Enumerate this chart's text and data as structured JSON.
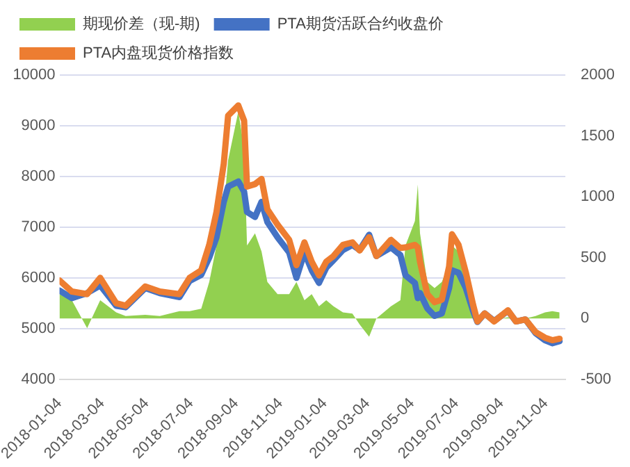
{
  "chart_data": {
    "type": "line",
    "legend": "top",
    "grid": "y",
    "marker": "none",
    "line_style": "solid",
    "x": [
      "2018-01-04",
      "2018-01-21",
      "2018-02-11",
      "2018-03-01",
      "2018-03-23",
      "2018-04-05",
      "2018-05-02",
      "2018-05-22",
      "2018-06-18",
      "2018-07-02",
      "2018-07-18",
      "2018-07-29",
      "2018-08-08",
      "2018-08-18",
      "2018-08-24",
      "2018-09-07",
      "2018-09-15",
      "2018-09-19",
      "2018-09-30",
      "2018-10-09",
      "2018-10-17",
      "2018-10-31",
      "2018-11-16",
      "2018-11-26",
      "2018-12-07",
      "2018-12-17",
      "2018-12-27",
      "2019-01-06",
      "2019-01-16",
      "2019-01-29",
      "2019-02-11",
      "2019-02-21",
      "2019-03-06",
      "2019-03-16",
      "2019-04-05",
      "2019-04-18",
      "2019-04-25",
      "2019-05-08",
      "2019-05-12",
      "2019-05-15",
      "2019-05-25",
      "2019-06-04",
      "2019-06-14",
      "2019-06-24",
      "2019-06-28",
      "2019-07-07",
      "2019-07-17",
      "2019-07-27",
      "2019-08-02",
      "2019-08-12",
      "2019-08-25",
      "2019-09-13",
      "2019-09-24",
      "2019-10-07",
      "2019-10-21",
      "2019-11-03",
      "2019-11-13",
      "2019-11-23"
    ],
    "series": [
      {
        "name": "期现价差（现-期)",
        "type": "area",
        "axis": "y2",
        "color": "#92d050",
        "values": [
          200,
          150,
          -80,
          150,
          50,
          20,
          30,
          20,
          60,
          60,
          80,
          300,
          600,
          900,
          1300,
          1700,
          1400,
          600,
          700,
          550,
          300,
          200,
          200,
          300,
          150,
          200,
          100,
          150,
          100,
          50,
          40,
          -50,
          -150,
          0,
          100,
          150,
          600,
          800,
          1100,
          700,
          300,
          250,
          300,
          450,
          600,
          550,
          350,
          100,
          10,
          0,
          -10,
          10,
          0,
          0,
          20,
          50,
          60,
          50
        ]
      },
      {
        "name": "PTA期货活跃合约收盘价",
        "color": "#4472c4",
        "values": [
          5750,
          5600,
          5700,
          5850,
          5450,
          5420,
          5800,
          5700,
          5620,
          5940,
          6060,
          6400,
          6800,
          7500,
          7800,
          7900,
          7700,
          7300,
          7200,
          7500,
          7100,
          6800,
          6500,
          6000,
          6500,
          6150,
          5900,
          6200,
          6350,
          6550,
          6650,
          6550,
          6850,
          6430,
          6600,
          6450,
          6050,
          5900,
          5600,
          5700,
          5400,
          5250,
          5300,
          5800,
          6150,
          6100,
          5800,
          5350,
          5130,
          5300,
          5150,
          5350,
          5140,
          5180,
          4910,
          4770,
          4710,
          4750
        ]
      },
      {
        "name": "PTA内盘现货价格指数",
        "color": "#ed7d31",
        "values": [
          5950,
          5730,
          5680,
          6000,
          5500,
          5450,
          5830,
          5730,
          5680,
          6000,
          6150,
          6650,
          7300,
          8250,
          9200,
          9400,
          9100,
          7800,
          7850,
          7950,
          7350,
          7050,
          6750,
          6250,
          6700,
          6320,
          6050,
          6320,
          6430,
          6650,
          6700,
          6540,
          6800,
          6430,
          6750,
          6590,
          6600,
          6650,
          6600,
          6320,
          5680,
          5520,
          5570,
          6220,
          6860,
          6650,
          6110,
          5470,
          5140,
          5300,
          5140,
          5360,
          5140,
          5180,
          4930,
          4820,
          4770,
          4800
        ]
      }
    ],
    "xlim": [
      "2018-01-04",
      "2019-12-01"
    ],
    "xticks": [
      "2018-01-04",
      "2018-03-04",
      "2018-05-04",
      "2018-07-04",
      "2018-09-04",
      "2018-11-04",
      "2019-01-04",
      "2019-03-04",
      "2019-05-04",
      "2019-07-04",
      "2019-09-04",
      "2019-11-04"
    ],
    "ylim": [
      4000,
      10000
    ],
    "yticks": [
      4000,
      5000,
      6000,
      7000,
      8000,
      9000,
      10000
    ],
    "y2lim": [
      -500,
      2000
    ],
    "y2ticks": [
      -500,
      0,
      500,
      1000,
      1500,
      2000
    ]
  }
}
